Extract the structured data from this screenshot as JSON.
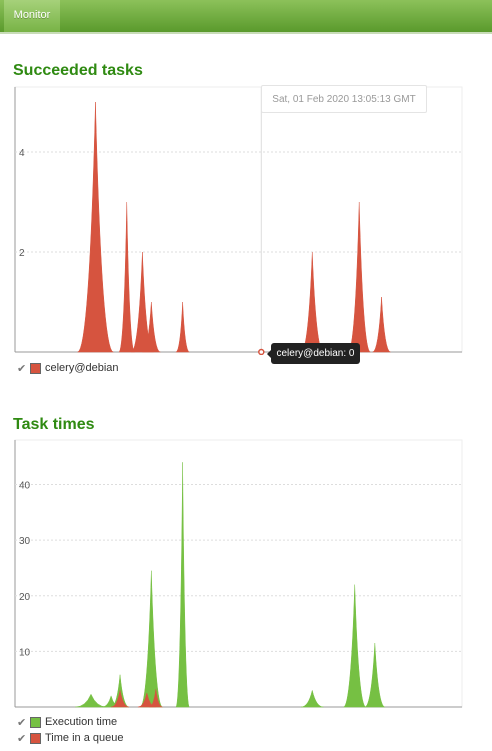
{
  "nav": {
    "tab_monitor": "Monitor"
  },
  "chart1": {
    "title": "Succeeded tasks",
    "hover_time": "Sat, 01 Feb 2020 13:05:13 GMT",
    "hover_value": "celery@debian: 0",
    "legend": [
      {
        "label": "celery@debian",
        "color": "#d6543f"
      }
    ]
  },
  "chart2": {
    "title": "Task times",
    "legend": [
      {
        "label": "Execution time",
        "color": "#76c043"
      },
      {
        "label": "Time in a queue",
        "color": "#d6543f"
      }
    ]
  },
  "chart_data": [
    {
      "type": "area",
      "title": "Succeeded tasks",
      "ylim": [
        0,
        5.3
      ],
      "yticks": [
        2,
        4
      ],
      "grid": true,
      "legend_position": "bottom-left",
      "series": [
        {
          "name": "celery@debian",
          "color": "#d6543f",
          "peaks": [
            {
              "x": 0.18,
              "value": 5,
              "width": 0.08
            },
            {
              "x": 0.25,
              "value": 3,
              "width": 0.035
            },
            {
              "x": 0.285,
              "value": 2,
              "width": 0.05
            },
            {
              "x": 0.305,
              "value": 1,
              "width": 0.04
            },
            {
              "x": 0.375,
              "value": 1,
              "width": 0.03
            },
            {
              "x": 0.665,
              "value": 2,
              "width": 0.05
            },
            {
              "x": 0.77,
              "value": 3,
              "width": 0.05
            },
            {
              "x": 0.82,
              "value": 1.1,
              "width": 0.04
            }
          ]
        }
      ]
    },
    {
      "type": "area",
      "title": "Task times",
      "ylim": [
        0,
        48
      ],
      "yticks": [
        10,
        20,
        30,
        40
      ],
      "grid": true,
      "legend_position": "bottom-left",
      "series": [
        {
          "name": "Execution time",
          "color": "#76c043",
          "peaks": [
            {
              "x": 0.17,
              "value": 2.3,
              "width": 0.07
            },
            {
              "x": 0.215,
              "value": 2,
              "width": 0.04
            },
            {
              "x": 0.235,
              "value": 5.8,
              "width": 0.04
            },
            {
              "x": 0.305,
              "value": 24.5,
              "width": 0.05
            },
            {
              "x": 0.375,
              "value": 44,
              "width": 0.03
            },
            {
              "x": 0.665,
              "value": 3,
              "width": 0.05
            },
            {
              "x": 0.76,
              "value": 22,
              "width": 0.05
            },
            {
              "x": 0.805,
              "value": 11.5,
              "width": 0.045
            }
          ]
        },
        {
          "name": "Time in a queue",
          "color": "#d6543f",
          "peaks": [
            {
              "x": 0.235,
              "value": 3,
              "width": 0.04
            },
            {
              "x": 0.295,
              "value": 2.5,
              "width": 0.04
            },
            {
              "x": 0.315,
              "value": 3.2,
              "width": 0.03
            }
          ]
        }
      ]
    }
  ]
}
